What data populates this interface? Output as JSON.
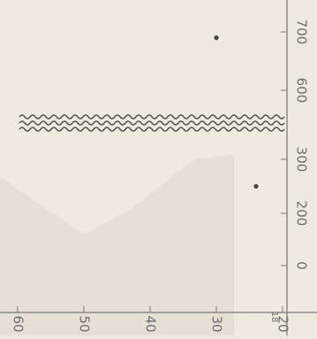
{
  "chart_data": {
    "type": "scatter",
    "orientation": "rotated-90",
    "title": "",
    "xlabel": "",
    "ylabel": "",
    "x_ticks": [
      "0",
      "200",
      "300",
      "600",
      "700"
    ],
    "y_ticks": [
      "60",
      "50",
      "40",
      "30",
      "20"
    ],
    "y_minor_label": "18",
    "axis_break": "between 300 and 600",
    "points": [
      {
        "x": 250,
        "y": 24
      },
      {
        "x": 690,
        "y": 30
      }
    ],
    "shaded_region": "light gray band, lower-left",
    "grid": false,
    "colors": {
      "background": "#eeeae0",
      "ink": "#707070",
      "break": "#555555",
      "shade": "#e2ddd3"
    }
  }
}
